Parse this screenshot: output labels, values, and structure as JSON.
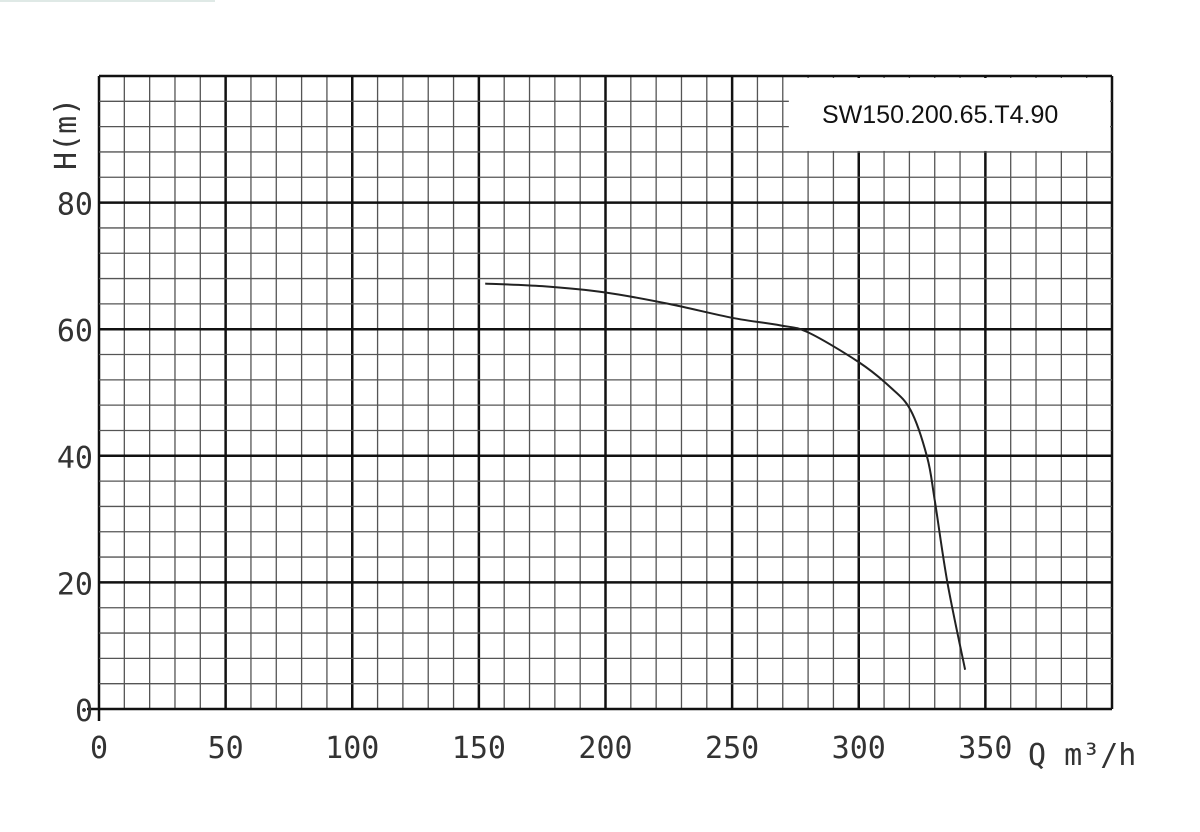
{
  "chart_data": {
    "type": "line",
    "title": "SW150.200.65.T4.90",
    "xlabel": "Q m³/h",
    "ylabel": "H(m)",
    "xlim": [
      0,
      400
    ],
    "ylim": [
      0,
      100
    ],
    "x_ticks": [
      0,
      50,
      100,
      150,
      200,
      250,
      300,
      350
    ],
    "y_ticks": [
      0,
      20,
      40,
      60,
      80
    ],
    "x_minor_step": 10,
    "y_minor_step": 4,
    "grid": true,
    "legend": "none",
    "line_color": "#222222",
    "grid_color": "#555555",
    "series": [
      {
        "x": [
          152.5,
          175,
          200,
          225,
          250,
          269,
          280,
          300,
          312,
          320.5,
          327,
          330,
          335,
          342
        ],
        "y": [
          67.2,
          66.8,
          65.8,
          64,
          61.8,
          60.6,
          59.5,
          54.8,
          51,
          47.2,
          39.8,
          33,
          20,
          6.2
        ]
      }
    ]
  }
}
